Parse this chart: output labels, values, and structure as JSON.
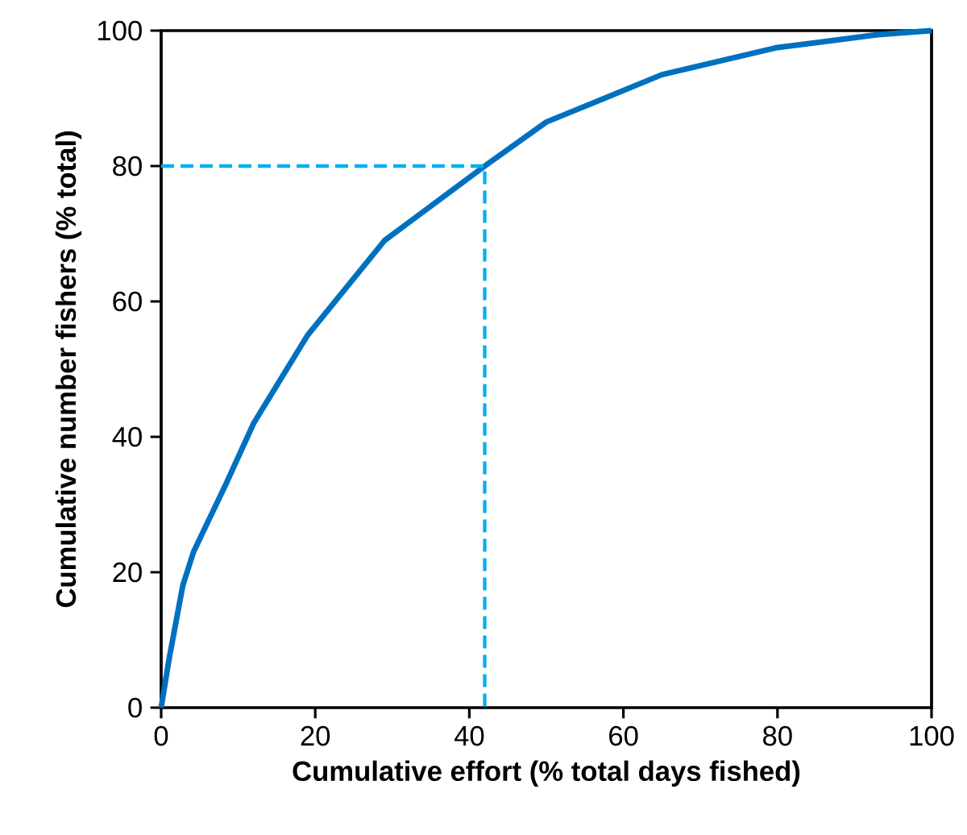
{
  "chart_data": {
    "type": "line",
    "xlabel": "Cumulative effort (% total days fished)",
    "ylabel": "Cumulative number fishers (% total)",
    "xlim": [
      0,
      100
    ],
    "ylim": [
      0,
      100
    ],
    "xticks": [
      0,
      20,
      40,
      60,
      80,
      100
    ],
    "yticks": [
      0,
      20,
      40,
      60,
      80,
      100
    ],
    "marker": "none",
    "series": [
      {
        "color": "#0070c0",
        "line_style": "solid",
        "x": [
          0,
          1,
          2.8,
          4.2,
          8.4,
          12,
          19,
          29,
          42,
          50,
          65,
          80,
          93,
          100
        ],
        "values": [
          0,
          7,
          18,
          23,
          33,
          42,
          55,
          69,
          80,
          86.5,
          93.5,
          97.5,
          99.4,
          100
        ]
      },
      {
        "color": "#00b0f0",
        "line_style": "dashed",
        "x": [
          0,
          42,
          42
        ],
        "values": [
          80,
          80,
          0
        ]
      }
    ]
  }
}
